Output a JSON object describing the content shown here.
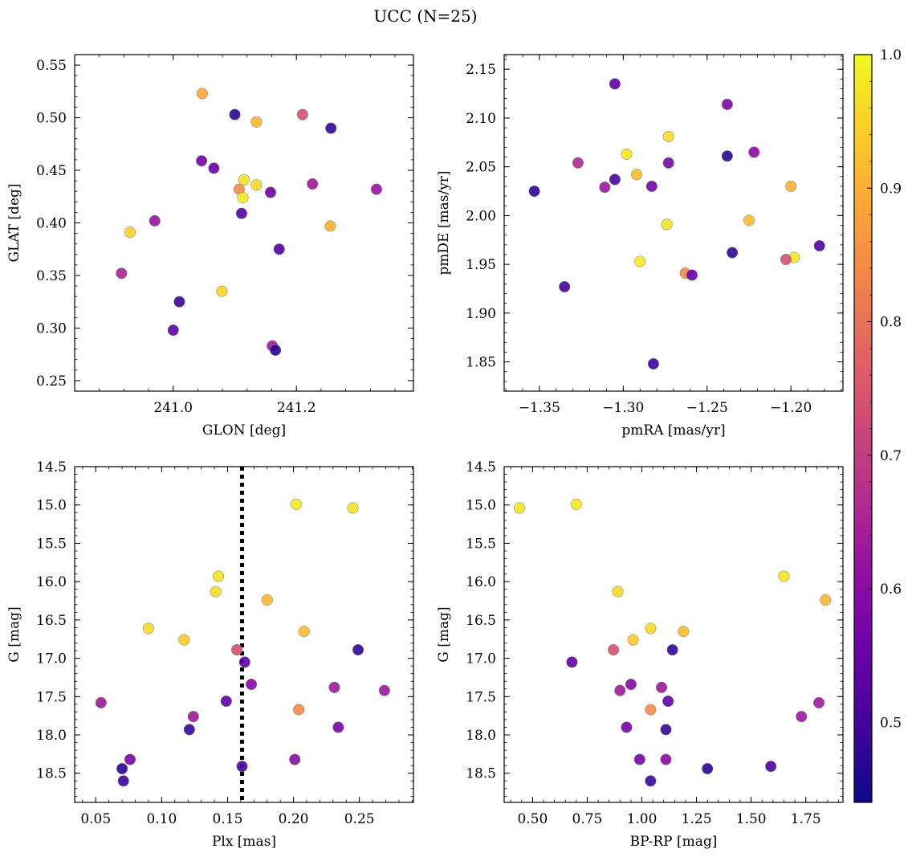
{
  "figure": {
    "title": "UCC (N=25)"
  },
  "colorbar": {
    "ticks": [
      0.5,
      0.6,
      0.7,
      0.8,
      0.9,
      1.0
    ],
    "tick_labels": [
      "0.5",
      "0.6",
      "0.7",
      "0.8",
      "0.9",
      "1.0"
    ],
    "range": [
      0.44,
      1.0
    ],
    "colormap": "plasma"
  },
  "chart_data": [
    {
      "type": "scatter",
      "xlabel": "GLON [deg]",
      "ylabel": "GLAT [deg]",
      "xlim": [
        240.84,
        241.39
      ],
      "ylim": [
        0.24,
        0.56
      ],
      "xticks": [
        241.0,
        241.2
      ],
      "xtick_labels": [
        "241.0",
        "241.2"
      ],
      "yticks": [
        0.25,
        0.3,
        0.35,
        0.4,
        0.45,
        0.5,
        0.55
      ],
      "ytick_labels": [
        "0.25",
        "0.30",
        "0.35",
        "0.40",
        "0.45",
        "0.50",
        "0.55"
      ],
      "x": [
        241.047,
        241.1,
        241.135,
        241.21,
        241.256,
        241.046,
        241.066,
        241.115,
        241.135,
        241.107,
        241.113,
        241.158,
        241.226,
        241.33,
        240.97,
        241.111,
        240.93,
        241.255,
        241.172,
        240.916,
        241.01,
        241.079,
        241.0,
        241.161,
        241.166
      ],
      "y": [
        0.523,
        0.503,
        0.496,
        0.503,
        0.49,
        0.459,
        0.452,
        0.441,
        0.436,
        0.432,
        0.424,
        0.429,
        0.437,
        0.432,
        0.402,
        0.409,
        0.391,
        0.397,
        0.375,
        0.352,
        0.325,
        0.335,
        0.298,
        0.283,
        0.279
      ],
      "c": [
        0.89,
        0.47,
        0.91,
        0.74,
        0.48,
        0.57,
        0.55,
        0.97,
        0.96,
        0.84,
        0.98,
        0.56,
        0.63,
        0.62,
        0.62,
        0.52,
        0.95,
        0.9,
        0.51,
        0.65,
        0.49,
        0.95,
        0.54,
        0.63,
        0.47
      ]
    },
    {
      "type": "scatter",
      "xlabel": "pmRA [mas/yr]",
      "ylabel": "pmDE [mas/yr]",
      "xlim": [
        -1.371,
        -1.169
      ],
      "ylim": [
        1.82,
        2.165
      ],
      "xticks": [
        -1.35,
        -1.3,
        -1.25,
        -1.2
      ],
      "xtick_labels": [
        "−1.35",
        "−1.30",
        "−1.25",
        "−1.20"
      ],
      "yticks": [
        1.85,
        1.9,
        1.95,
        2.0,
        2.05,
        2.1,
        2.15
      ],
      "ytick_labels": [
        "1.85",
        "1.90",
        "1.95",
        "2.00",
        "2.05",
        "2.10",
        "2.15"
      ],
      "x": [
        -1.305,
        -1.238,
        -1.273,
        -1.298,
        -1.238,
        -1.222,
        -1.327,
        -1.305,
        -1.273,
        -1.292,
        -1.311,
        -1.283,
        -1.353,
        -1.2,
        -1.274,
        -1.225,
        -1.183,
        -1.235,
        -1.198,
        -1.203,
        -1.29,
        -1.263,
        -1.259,
        -1.335,
        -1.282
      ],
      "y": [
        2.135,
        2.114,
        2.081,
        2.063,
        2.061,
        2.065,
        2.054,
        2.037,
        2.054,
        2.042,
        2.029,
        2.03,
        2.025,
        2.03,
        1.991,
        1.995,
        1.969,
        1.962,
        1.957,
        1.955,
        1.953,
        1.941,
        1.939,
        1.927,
        1.848
      ],
      "c": [
        0.54,
        0.58,
        0.96,
        0.97,
        0.47,
        0.6,
        0.66,
        0.5,
        0.58,
        0.92,
        0.63,
        0.57,
        0.48,
        0.9,
        0.97,
        0.92,
        0.52,
        0.48,
        0.98,
        0.74,
        0.98,
        0.84,
        0.55,
        0.5,
        0.49
      ]
    },
    {
      "type": "scatter",
      "xlabel": "Plx [mas]",
      "ylabel": "G [mag]",
      "xlim": [
        0.034,
        0.291
      ],
      "ylim": [
        18.88,
        14.5
      ],
      "invert_y": true,
      "vline": 0.161,
      "xticks": [
        0.05,
        0.1,
        0.15,
        0.2,
        0.25
      ],
      "xtick_labels": [
        "0.05",
        "0.10",
        "0.15",
        "0.20",
        "0.25"
      ],
      "yticks": [
        14.5,
        15.0,
        15.5,
        16.0,
        16.5,
        17.0,
        17.5,
        18.0,
        18.5
      ],
      "ytick_labels": [
        "14.5",
        "15.0",
        "15.5",
        "16.0",
        "16.5",
        "17.0",
        "17.5",
        "18.0",
        "18.5"
      ],
      "x": [
        0.202,
        0.245,
        0.143,
        0.141,
        0.18,
        0.09,
        0.117,
        0.208,
        0.157,
        0.249,
        0.163,
        0.168,
        0.231,
        0.269,
        0.054,
        0.149,
        0.124,
        0.204,
        0.234,
        0.121,
        0.076,
        0.201,
        0.07,
        0.161,
        0.071
      ],
      "y": [
        14.99,
        15.04,
        15.93,
        16.13,
        16.24,
        16.61,
        16.76,
        16.65,
        16.89,
        16.89,
        17.05,
        17.34,
        17.38,
        17.42,
        17.58,
        17.56,
        17.76,
        17.67,
        17.9,
        17.93,
        18.32,
        18.32,
        18.44,
        18.41,
        18.6
      ],
      "c": [
        0.98,
        0.97,
        0.97,
        0.96,
        0.91,
        0.96,
        0.94,
        0.92,
        0.74,
        0.48,
        0.54,
        0.59,
        0.63,
        0.63,
        0.63,
        0.54,
        0.63,
        0.84,
        0.57,
        0.48,
        0.57,
        0.6,
        0.47,
        0.51,
        0.49
      ]
    },
    {
      "type": "scatter",
      "xlabel": "BP-RP [mag]",
      "ylabel": "G [mag]",
      "xlim": [
        0.37,
        1.92
      ],
      "ylim": [
        18.88,
        14.5
      ],
      "invert_y": true,
      "xticks": [
        0.5,
        0.75,
        1.0,
        1.25,
        1.5,
        1.75
      ],
      "xtick_labels": [
        "0.50",
        "0.75",
        "1.00",
        "1.25",
        "1.50",
        "1.75"
      ],
      "yticks": [
        14.5,
        15.0,
        15.5,
        16.0,
        16.5,
        17.0,
        17.5,
        18.0,
        18.5
      ],
      "ytick_labels": [
        "14.5",
        "15.0",
        "15.5",
        "16.0",
        "16.5",
        "17.0",
        "17.5",
        "18.0",
        "18.5"
      ],
      "x": [
        0.44,
        0.7,
        1.65,
        0.89,
        1.84,
        1.04,
        0.96,
        1.19,
        0.87,
        1.14,
        0.68,
        0.95,
        1.09,
        0.9,
        1.81,
        1.12,
        1.73,
        1.04,
        0.93,
        1.11,
        0.99,
        1.11,
        1.3,
        1.59,
        1.04
      ],
      "y": [
        15.04,
        14.99,
        15.93,
        16.13,
        16.24,
        16.61,
        16.76,
        16.65,
        16.89,
        16.89,
        17.05,
        17.34,
        17.38,
        17.42,
        17.58,
        17.56,
        17.76,
        17.67,
        17.9,
        17.93,
        18.32,
        18.32,
        18.44,
        18.41,
        18.6
      ],
      "c": [
        0.97,
        0.98,
        0.97,
        0.96,
        0.91,
        0.96,
        0.94,
        0.92,
        0.74,
        0.48,
        0.54,
        0.59,
        0.63,
        0.63,
        0.63,
        0.54,
        0.63,
        0.84,
        0.57,
        0.48,
        0.57,
        0.6,
        0.47,
        0.51,
        0.49
      ]
    }
  ]
}
